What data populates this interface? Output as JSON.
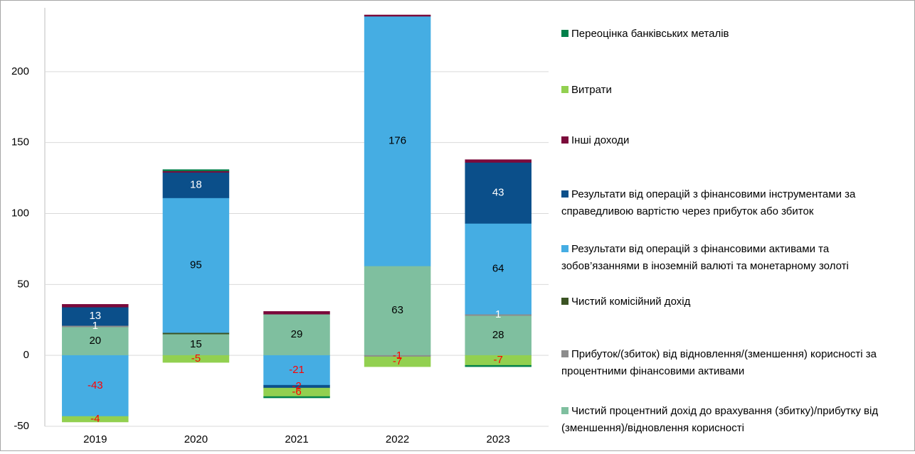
{
  "chart_data": {
    "type": "bar",
    "stacked": true,
    "categories": [
      "2019",
      "2020",
      "2021",
      "2022",
      "2023"
    ],
    "ylim": [
      -50,
      245
    ],
    "yticks": [
      -50,
      0,
      50,
      100,
      150,
      200
    ],
    "grid": true,
    "legend": "right",
    "series": [
      {
        "name": "Чистий процентний дохід до врахування (збитку)/прибутку від (зменшення)/відновлення корисності",
        "color": "#7fbf9f",
        "values": [
          20,
          15,
          29,
          63,
          28
        ],
        "labels": true,
        "label_color": "#000"
      },
      {
        "name": "Прибуток/(збиток) від відновлення/(зменшення) корисності за процентними фінансовими активами",
        "color": "#8c8c8c",
        "values": [
          1,
          0,
          0,
          -1,
          1
        ],
        "labels": true,
        "label_color": "#fff"
      },
      {
        "name": "Чистий комісійний дохід",
        "color": "#3b5323",
        "values": [
          0,
          1,
          0,
          0,
          0
        ],
        "labels": false,
        "label_color": "#000"
      },
      {
        "name": "Результати від операцій з фінансовими активами та зобов’язаннями в іноземній валюті та монетарному золоті",
        "color": "#45ade3",
        "values": [
          -43,
          95,
          -21,
          176,
          64
        ],
        "labels": true,
        "label_color": "#000"
      },
      {
        "name": "Результати від операцій з фінансовими інструментами за справедливою вартістю через прибуток або збиток",
        "color": "#0b4f8a",
        "values": [
          13,
          18,
          -2,
          0,
          43
        ],
        "labels": true,
        "label_color": "#fff"
      },
      {
        "name": "Інші доходи",
        "color": "#7b0a3b",
        "values": [
          2,
          1,
          2,
          1,
          2
        ],
        "labels": false,
        "label_color": "#000"
      },
      {
        "name": "Витрати",
        "color": "#92d050",
        "values": [
          -4,
          -5,
          -6,
          -7,
          -7
        ],
        "labels": true,
        "label_color": "#000"
      },
      {
        "name": "Переоцінка банківських металів",
        "color": "#00804a",
        "values": [
          0,
          1,
          -1,
          0,
          -1
        ],
        "labels": false,
        "label_color": "#000"
      }
    ]
  }
}
